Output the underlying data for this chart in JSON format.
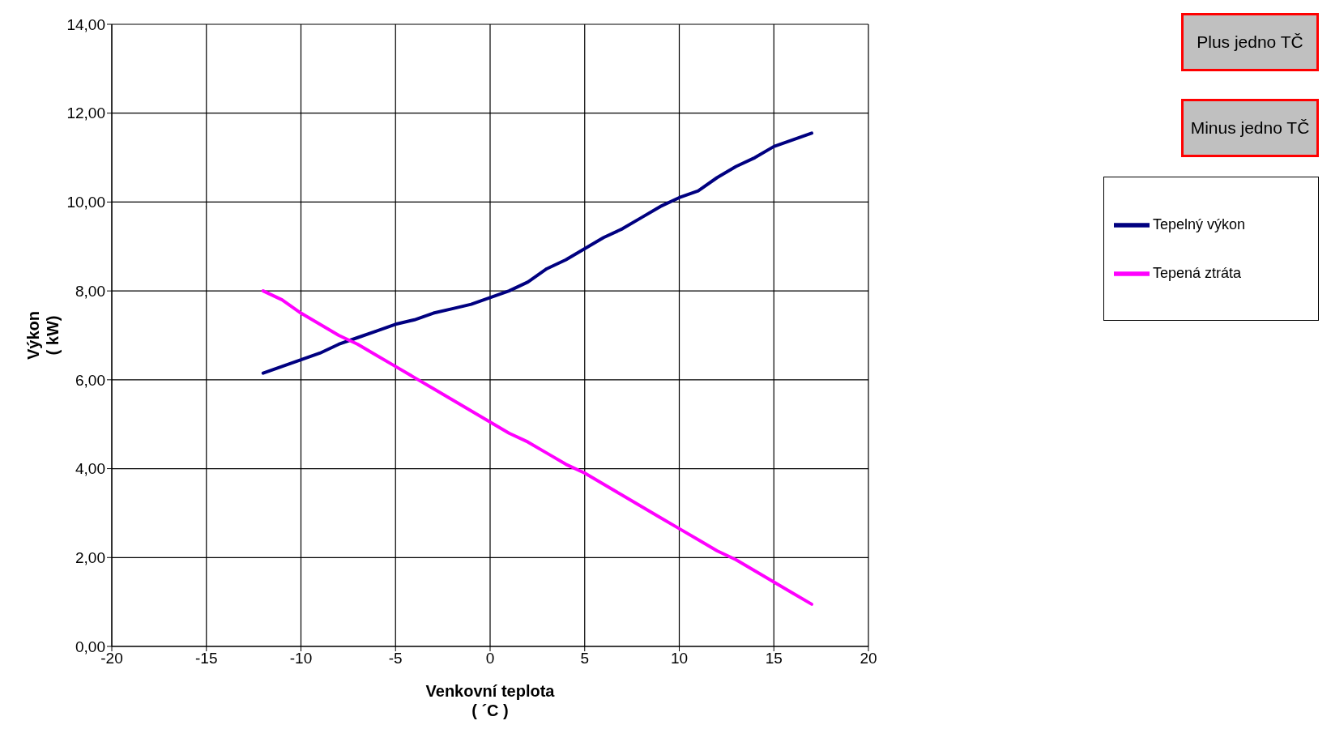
{
  "chart_data": {
    "type": "line",
    "xlabel": "Venkovní teplota\n( ´C )",
    "ylabel": "Výkon\n( kW)",
    "x": [
      -12,
      -11,
      -10,
      -9,
      -8,
      -7,
      -6,
      -5,
      -4,
      -3,
      -2,
      -1,
      0,
      1,
      2,
      3,
      4,
      5,
      6,
      7,
      8,
      9,
      10,
      11,
      12,
      13,
      14,
      15,
      16,
      17
    ],
    "series": [
      {
        "name": "Tepelný výkon",
        "color": "#000080",
        "values": [
          6.15,
          6.3,
          6.45,
          6.6,
          6.8,
          6.95,
          7.1,
          7.25,
          7.35,
          7.5,
          7.6,
          7.7,
          7.85,
          8.0,
          8.2,
          8.5,
          8.7,
          8.95,
          9.2,
          9.4,
          9.65,
          9.9,
          10.1,
          10.25,
          10.55,
          10.8,
          11.0,
          11.25,
          11.4,
          11.55
        ]
      },
      {
        "name": "Tepená ztráta",
        "color": "#ff00ff",
        "values": [
          8.0,
          7.8,
          7.5,
          7.25,
          7.0,
          6.8,
          6.55,
          6.3,
          6.05,
          5.8,
          5.55,
          5.3,
          5.05,
          4.8,
          4.6,
          4.35,
          4.1,
          3.9,
          3.65,
          3.4,
          3.15,
          2.9,
          2.65,
          2.4,
          2.15,
          1.95,
          1.7,
          1.45,
          1.2,
          0.95
        ]
      }
    ],
    "xlim": [
      -20,
      20
    ],
    "xticks": [
      -20,
      -15,
      -10,
      -5,
      0,
      5,
      10,
      15,
      20
    ],
    "ylim": [
      0,
      14
    ],
    "yticks": [
      {
        "value": 0,
        "label": "0,00"
      },
      {
        "value": 2,
        "label": "2,00"
      },
      {
        "value": 4,
        "label": "4,00"
      },
      {
        "value": 6,
        "label": "6,00"
      },
      {
        "value": 8,
        "label": "8,00"
      },
      {
        "value": 10,
        "label": "10,00"
      },
      {
        "value": 12,
        "label": "12,00"
      },
      {
        "value": 14,
        "label": "14,00"
      }
    ],
    "annotations": [
      "Plus jedno TČ",
      "Minus jedno TČ"
    ],
    "grid": true,
    "legend": "right",
    "marker": "none",
    "line_style": "solid"
  }
}
